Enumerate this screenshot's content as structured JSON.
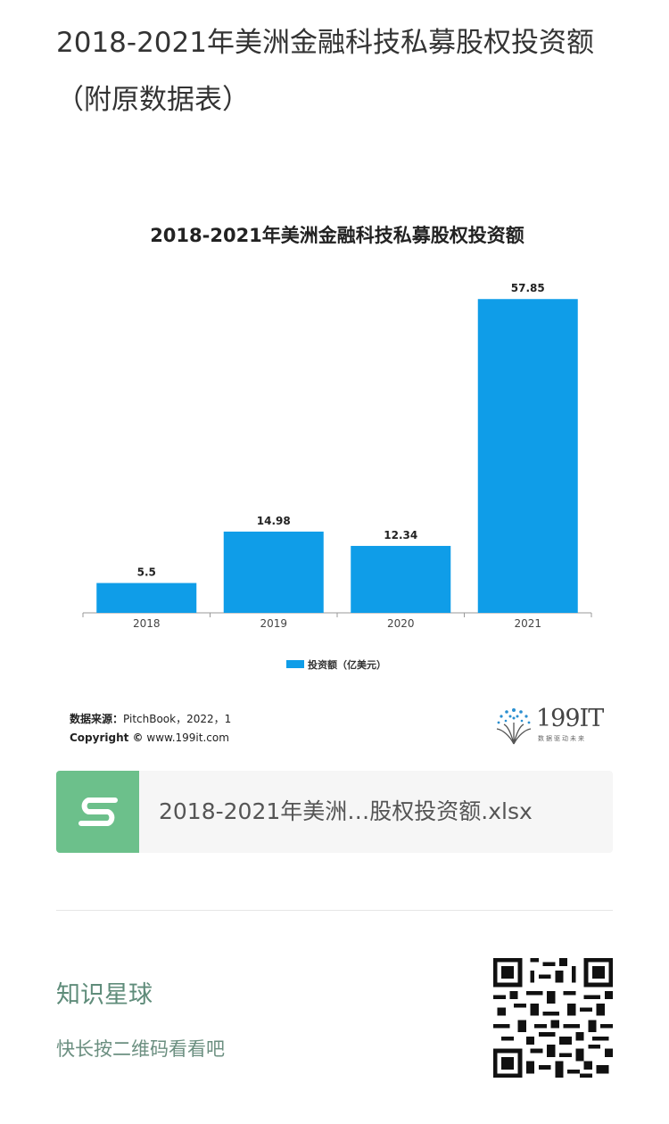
{
  "article": {
    "title": "2018-2021年美洲金融科技私募股权投资额（附原数据表）"
  },
  "chart_data": {
    "type": "bar",
    "title": "2018-2021年美洲金融科技私募股权投资额",
    "categories": [
      "2018",
      "2019",
      "2020",
      "2021"
    ],
    "values": [
      5.5,
      14.98,
      12.34,
      57.85
    ],
    "value_labels": [
      "5.5",
      "14.98",
      "12.34",
      "57.85"
    ],
    "series": [
      {
        "name": "投资额（亿美元）",
        "values": [
          5.5,
          14.98,
          12.34,
          57.85
        ]
      }
    ],
    "ylim": [
      0,
      62
    ],
    "grid": false,
    "legend": "bottom-center",
    "bar_color": "#0f9de8",
    "source_label": "数据来源：",
    "source_text": "PitchBook，2022，1",
    "copyright_label": "Copyright ©",
    "copyright_text": "www.199it.com"
  },
  "logo": {
    "text": "199IT",
    "subtitle": "数据驱动未来"
  },
  "attachment": {
    "filename": "2018-2021年美洲…股权投资额.xlsx",
    "icon": "spreadsheet-s-icon",
    "icon_color": "#6cc08b"
  },
  "promo": {
    "title": "知识星球",
    "subtitle": "快长按二维码看看吧",
    "qr_icon": "qr-code-icon"
  }
}
